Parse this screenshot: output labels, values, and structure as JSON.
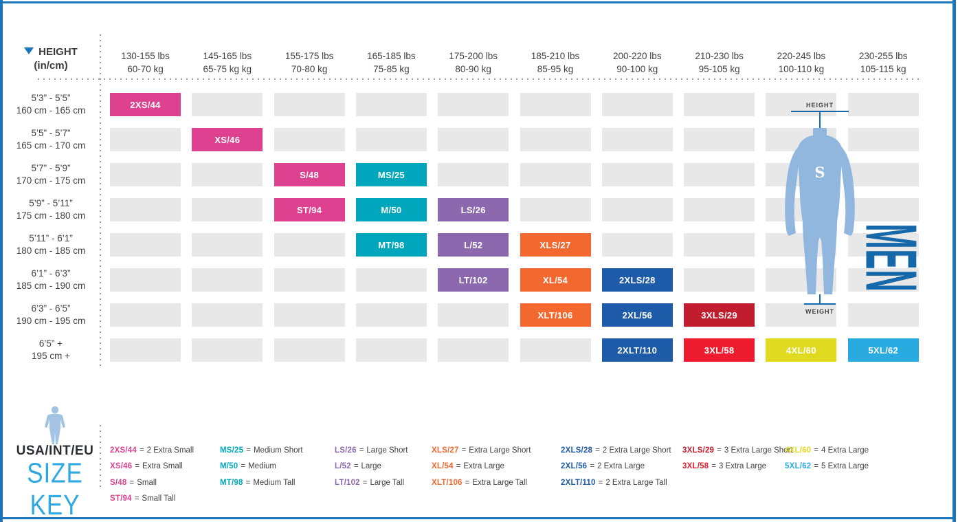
{
  "header": {
    "height_label": "HEIGHT",
    "height_unit": "(in/cm)",
    "weight_columns": [
      {
        "lbs": "130-155 lbs",
        "kg": "60-70 kg"
      },
      {
        "lbs": "145-165 lbs",
        "kg": "65-75 kg kg"
      },
      {
        "lbs": "155-175 lbs",
        "kg": "70-80 kg"
      },
      {
        "lbs": "165-185 lbs",
        "kg": "75-85 kg"
      },
      {
        "lbs": "175-200 lbs",
        "kg": "80-90 kg"
      },
      {
        "lbs": "185-210 lbs",
        "kg": "85-95 kg"
      },
      {
        "lbs": "200-220 lbs",
        "kg": "90-100 kg"
      },
      {
        "lbs": "210-230 lbs",
        "kg": "95-105 kg"
      },
      {
        "lbs": "220-245 lbs",
        "kg": "100-110 kg"
      },
      {
        "lbs": "230-255 lbs",
        "kg": "105-115 kg"
      }
    ]
  },
  "rows": [
    {
      "feet": "5’3” - 5’5”",
      "cm": "160 cm - 165 cm"
    },
    {
      "feet": "5’5” - 5’7”",
      "cm": "165 cm - 170 cm"
    },
    {
      "feet": "5’7” - 5’9”",
      "cm": "170 cm - 175 cm"
    },
    {
      "feet": "5’9” - 5’11”",
      "cm": "175 cm - 180 cm"
    },
    {
      "feet": "5’11” - 6’1”",
      "cm": "180 cm - 185 cm"
    },
    {
      "feet": "6’1” - 6’3”",
      "cm": "185 cm - 190 cm"
    },
    {
      "feet": "6’3” - 6’5”",
      "cm": "190 cm - 195 cm"
    },
    {
      "feet": "6’5” +",
      "cm": "195 cm +"
    }
  ],
  "grid": {
    "rows": 8,
    "cols": 10,
    "sized_cells": [
      {
        "row": 0,
        "col": 0,
        "label": "2XS/44",
        "color": "pink"
      },
      {
        "row": 1,
        "col": 1,
        "label": "XS/46",
        "color": "pink"
      },
      {
        "row": 2,
        "col": 2,
        "label": "S/48",
        "color": "pink"
      },
      {
        "row": 2,
        "col": 3,
        "label": "MS/25",
        "color": "teal"
      },
      {
        "row": 3,
        "col": 2,
        "label": "ST/94",
        "color": "pink"
      },
      {
        "row": 3,
        "col": 3,
        "label": "M/50",
        "color": "teal"
      },
      {
        "row": 3,
        "col": 4,
        "label": "LS/26",
        "color": "purple"
      },
      {
        "row": 4,
        "col": 3,
        "label": "MT/98",
        "color": "teal"
      },
      {
        "row": 4,
        "col": 4,
        "label": "L/52",
        "color": "purple"
      },
      {
        "row": 4,
        "col": 5,
        "label": "XLS/27",
        "color": "orange"
      },
      {
        "row": 5,
        "col": 4,
        "label": "LT/102",
        "color": "purple"
      },
      {
        "row": 5,
        "col": 5,
        "label": "XL/54",
        "color": "orange"
      },
      {
        "row": 5,
        "col": 6,
        "label": "2XLS/28",
        "color": "navy"
      },
      {
        "row": 6,
        "col": 5,
        "label": "XLT/106",
        "color": "orange"
      },
      {
        "row": 6,
        "col": 6,
        "label": "2XL/56",
        "color": "navy"
      },
      {
        "row": 6,
        "col": 7,
        "label": "3XLS/29",
        "color": "darkred"
      },
      {
        "row": 7,
        "col": 6,
        "label": "2XLT/110",
        "color": "navy"
      },
      {
        "row": 7,
        "col": 7,
        "label": "3XL/58",
        "color": "red"
      },
      {
        "row": 7,
        "col": 8,
        "label": "4XL/60",
        "color": "yellow"
      },
      {
        "row": 7,
        "col": 9,
        "label": "5XL/62",
        "color": "cyan"
      }
    ]
  },
  "figure": {
    "height_label": "HEIGHT",
    "weight_label": "WEIGHT",
    "gender_label": "MEN",
    "brand_logo": "S"
  },
  "size_key": {
    "region_label": "USA/INT/EU",
    "title": "SIZE KEY",
    "separator": "=",
    "columns": [
      {
        "entries": [
          {
            "code": "2XS/44",
            "name": "2 Extra Small",
            "color": "pink"
          },
          {
            "code": "XS/46",
            "name": "Extra Small",
            "color": "pink"
          },
          {
            "code": "S/48",
            "name": "Small",
            "color": "pink"
          },
          {
            "code": "ST/94",
            "name": "Small Tall",
            "color": "pink"
          }
        ]
      },
      {
        "entries": [
          {
            "code": "MS/25",
            "name": "Medium Short",
            "color": "teal"
          },
          {
            "code": "M/50",
            "name": "Medium",
            "color": "teal"
          },
          {
            "code": "MT/98",
            "name": "Medium Tall",
            "color": "teal"
          }
        ]
      },
      {
        "entries": [
          {
            "code": "LS/26",
            "name": "Large Short",
            "color": "purple"
          },
          {
            "code": "L/52",
            "name": "Large",
            "color": "purple"
          },
          {
            "code": "LT/102",
            "name": "Large Tall",
            "color": "purple"
          }
        ]
      },
      {
        "entries": [
          {
            "code": "XLS/27",
            "name": "Extra Large Short",
            "color": "orange"
          },
          {
            "code": "XL/54",
            "name": "Extra Large",
            "color": "orange"
          },
          {
            "code": "XLT/106",
            "name": "Extra Large Tall",
            "color": "orange"
          }
        ]
      },
      {
        "entries": [
          {
            "code": "2XLS/28",
            "name": "2 Extra Large Short",
            "color": "navy"
          },
          {
            "code": "2XL/56",
            "name": "2 Extra Large",
            "color": "navy"
          },
          {
            "code": "2XLT/110",
            "name": "2 Extra Large Tall",
            "color": "navy"
          }
        ]
      },
      {
        "entries": [
          {
            "code": "3XLS/29",
            "name": "3 Extra Large Short",
            "color": "darkred"
          },
          {
            "code": "3XL/58",
            "name": "3 Extra Large",
            "color": "red"
          }
        ]
      },
      {
        "entries": [
          {
            "code": "4XL/60",
            "name": "4 Extra Large",
            "color": "yellow"
          },
          {
            "code": "5XL/62",
            "name": "5 Extra Large",
            "color": "cyan"
          }
        ]
      }
    ]
  },
  "colors": {
    "pink": "#de4190",
    "teal": "#00a7bc",
    "purple": "#8c69af",
    "orange": "#f2682f",
    "navy": "#1e5ba9",
    "darkred": "#c01e2e",
    "red": "#ec1c2e",
    "yellow": "#e0db21",
    "cyan": "#29abe2",
    "empty_cell": "#e8e8e8",
    "frame_blue": "#1b75bc",
    "accent_blue": "#1568a9",
    "suit_blue": "#92b7df",
    "key_title_blue": "#2fa9e1",
    "text_dark": "#414042"
  }
}
